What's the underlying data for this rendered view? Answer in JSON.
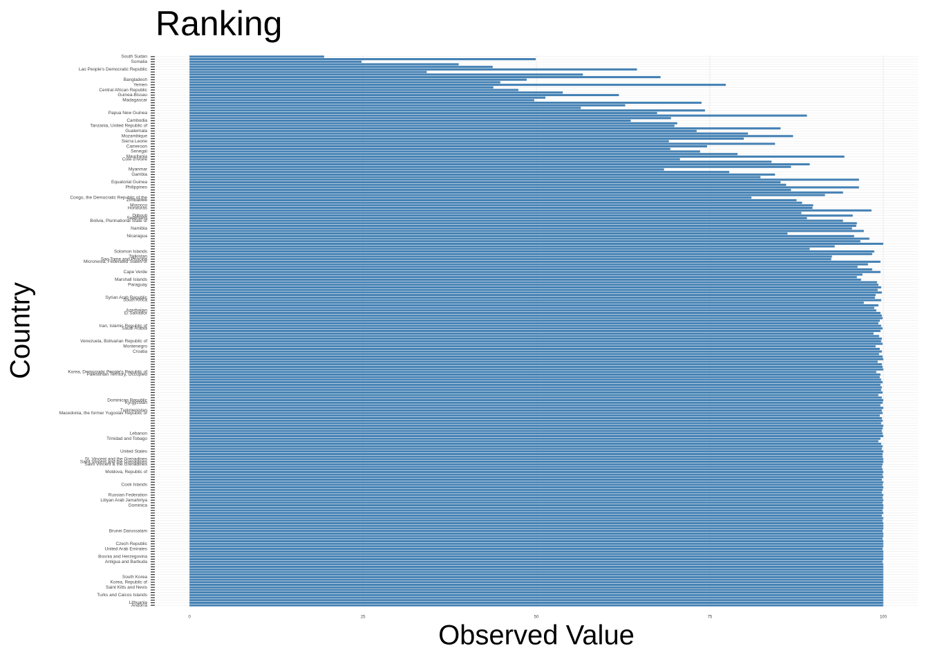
{
  "chart_data": {
    "type": "barh",
    "title": "Ranking",
    "x_label": "Observed Value",
    "y_label": "Country",
    "color": "#4682b4",
    "grid": true,
    "xlim": [
      -5,
      105
    ],
    "xticks": [
      0,
      25,
      50,
      75,
      100
    ],
    "categories": [
      "South Sudan",
      null,
      "Somalia",
      null,
      null,
      "Lao People's Democratic Republic",
      null,
      null,
      null,
      "Bangladesh",
      null,
      "Yemen",
      null,
      "Central African Republic",
      null,
      "Guinea-Bissau",
      null,
      "Madagascar",
      null,
      null,
      null,
      null,
      "Papua New Guinea",
      null,
      null,
      "Cambodia",
      null,
      "Tanzania, United Republic of",
      null,
      "Guatemala",
      null,
      "Mozambique",
      null,
      "Sierra Leone",
      null,
      "Cameroon",
      null,
      "Senegal",
      null,
      "Mauritania",
      "Cote d'Ivoire",
      null,
      null,
      null,
      "Myanmar",
      null,
      "Gambia",
      null,
      null,
      "Equatorial Guinea",
      null,
      "Philippines",
      null,
      null,
      null,
      "Congo, the Democratic Republic of the",
      "Zimbabwe",
      null,
      "Morocco",
      "Honduras",
      null,
      null,
      "Djibouti",
      "Swaziland",
      "Bolivia, Plurinational State of",
      null,
      null,
      "Namibia",
      null,
      null,
      "Nicaragua",
      null,
      null,
      null,
      null,
      null,
      "Solomon Islands",
      null,
      "Tajikistan",
      "Sao Tome and Principe",
      "Micronesia, Federated States of",
      null,
      null,
      null,
      "Cape Verde",
      null,
      null,
      "Marshall Islands",
      null,
      "Paraguay",
      null,
      null,
      null,
      null,
      "Syrian Arab Republic",
      "South Africa",
      null,
      null,
      null,
      "Azerbaijan",
      "El Salvador",
      null,
      null,
      null,
      null,
      "Iran, Islamic Republic of",
      "Saudi Arabia",
      null,
      null,
      null,
      null,
      "Venezuela, Bolivarian Republic of",
      null,
      "Montenegro",
      null,
      "Croatia",
      null,
      null,
      null,
      null,
      null,
      null,
      null,
      "Korea, Democratic People's Republic of",
      "Palestinian Territory, Occupied",
      null,
      null,
      null,
      null,
      null,
      null,
      null,
      null,
      null,
      "Dominican Republic",
      "Kyrgyzstan",
      null,
      null,
      "Turkmenistan",
      "Macedonia, the former Yugoslav Republic of",
      null,
      null,
      null,
      null,
      null,
      null,
      null,
      "Lebanon",
      null,
      "Trinidad and Tobago",
      null,
      null,
      null,
      null,
      "United States",
      null,
      null,
      "St. Vincent and the Grenadines",
      "Saint Vincent and the Grenadines",
      "Saint Vincent & the Grenadines",
      null,
      null,
      "Moldova, Republic of",
      null,
      null,
      null,
      null,
      "Cook Islands",
      null,
      null,
      null,
      "Russian Federation",
      null,
      "Libyan Arab Jamahiriya",
      null,
      "Dominica",
      null,
      null,
      null,
      null,
      null,
      null,
      null,
      null,
      null,
      "Brunei Darussalam",
      null,
      null,
      null,
      null,
      "Czech Republic",
      null,
      "United Arab Emirates",
      null,
      null,
      "Bosnia and Herzegovina",
      null,
      "Antigua and Barbuda",
      null,
      null,
      null,
      null,
      null,
      "South Korea",
      null,
      "Korea, Republic of",
      null,
      "Saint Kitts and Nevis",
      null,
      null,
      "Turks and Caicos Islands",
      null,
      null,
      "Lithuania",
      "Andorra"
    ],
    "values": [
      19.4,
      49.9,
      24.8,
      38.8,
      43.7,
      64.5,
      34.2,
      56.7,
      67.9,
      48.6,
      44.8,
      77.3,
      43.8,
      47.4,
      53.8,
      61.9,
      51.3,
      49.7,
      73.8,
      62.8,
      56.4,
      74.3,
      67.4,
      89.0,
      69.4,
      63.6,
      70.3,
      69.9,
      85.2,
      73.1,
      80.5,
      87.0,
      79.9,
      69.1,
      84.4,
      74.6,
      69.3,
      73.6,
      79.0,
      94.4,
      70.7,
      83.9,
      89.4,
      86.7,
      68.4,
      77.8,
      84.4,
      82.3,
      96.5,
      85.2,
      86.0,
      96.5,
      86.7,
      94.2,
      91.6,
      81.0,
      87.5,
      88.3,
      89.9,
      89.8,
      98.3,
      88.2,
      95.6,
      89.0,
      94.2,
      96.2,
      96.1,
      95.5,
      97.2,
      86.2,
      95.8,
      98.0,
      96.7,
      100,
      93.0,
      89.4,
      98.7,
      98.4,
      92.6,
      92.5,
      99.6,
      97.8,
      96.3,
      98.4,
      99.6,
      97.0,
      96.2,
      96.8,
      99.1,
      99.3,
      99.7,
      99.2,
      99.8,
      98.9,
      98.8,
      99.7,
      97.2,
      99.3,
      98.7,
      99.0,
      99.6,
      99.8,
      99.9,
      99.5,
      99.3,
      99.7,
      99.9,
      99.6,
      98.6,
      99.4,
      99.8,
      99.7,
      99.9,
      98.9,
      99.5,
      99.8,
      99.4,
      99.9,
      100,
      99.2,
      99.8,
      99.9,
      100,
      99.0,
      99.6,
      99.5,
      99.7,
      99.9,
      99.6,
      99.8,
      99.7,
      99.9,
      99.3,
      99.8,
      100,
      99.9,
      99.6,
      100,
      99.8,
      99.9,
      99.5,
      99.8,
      99.9,
      99.7,
      100,
      99.9,
      99.8,
      99.9,
      100,
      99.6,
      99.3,
      99.7,
      99.9,
      99.8,
      100,
      99.9,
      99.9,
      100,
      100,
      99.9,
      99.8,
      99.9,
      100,
      99.9,
      100,
      99.8,
      100,
      99.9,
      100,
      99.9,
      99.8,
      100,
      99.9,
      100,
      99.9,
      100,
      100,
      99.9,
      100,
      99.8,
      100,
      99.9,
      100,
      100,
      100,
      99.9,
      100,
      100,
      99.9,
      100,
      100,
      100,
      99.9,
      100,
      100,
      100,
      100,
      99.9,
      100,
      100,
      100,
      100,
      100,
      100,
      100,
      100,
      100,
      100,
      100,
      100,
      100,
      100,
      100,
      100,
      100
    ]
  }
}
